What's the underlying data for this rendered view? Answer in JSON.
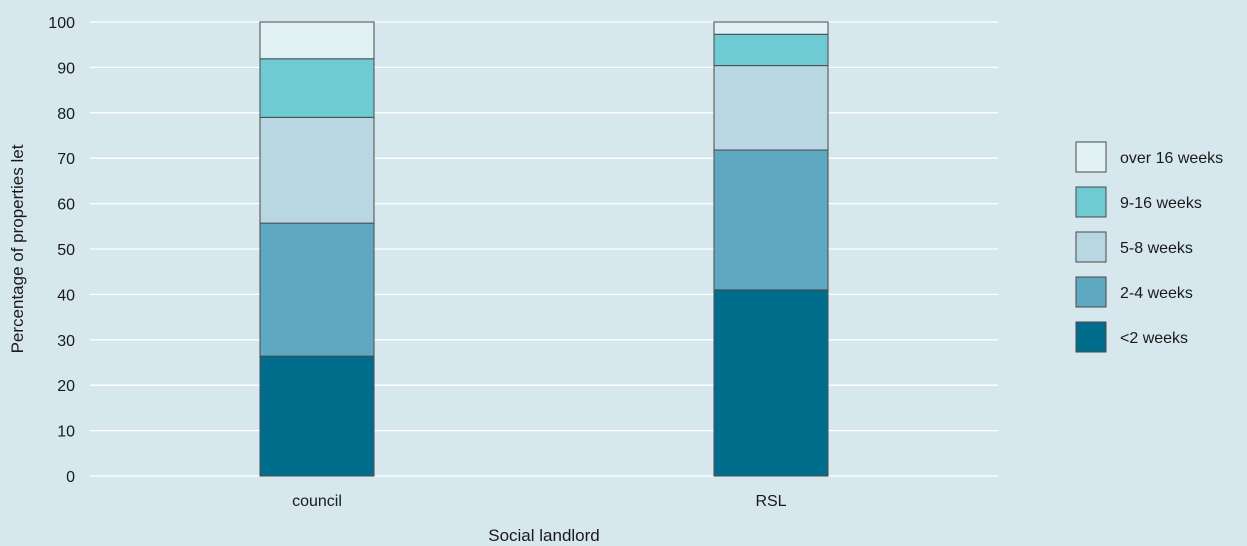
{
  "chart_data": {
    "type": "bar",
    "stacked": true,
    "categories": [
      "council",
      "RSL"
    ],
    "series": [
      {
        "name": "<2 weeks",
        "values": [
          26.4,
          41
        ],
        "color": "#006d8c"
      },
      {
        "name": "2-4 weeks",
        "values": [
          29.3,
          30.8
        ],
        "color": "#5ea9c1"
      },
      {
        "name": "5-8 weeks",
        "values": [
          23.3,
          18.6
        ],
        "color": "#b9d7e2"
      },
      {
        "name": "9-16 weeks",
        "values": [
          12.9,
          6.9
        ],
        "color": "#6ecbd3"
      },
      {
        "name": "over 16 weeks",
        "values": [
          8.1,
          2.7
        ],
        "color": "#e2f1f3"
      }
    ],
    "title": "",
    "xlabel": "Social landlord",
    "ylabel": "Percentage of properties let",
    "ylim": [
      0,
      100
    ],
    "yticks": [
      0,
      10,
      20,
      30,
      40,
      50,
      60,
      70,
      80,
      90,
      100
    ],
    "grid": true,
    "legend_position": "right",
    "colors": {
      "background": "#d6e7ee",
      "grid": "#ffffff",
      "bar_outline": "#4a4a4a"
    }
  }
}
